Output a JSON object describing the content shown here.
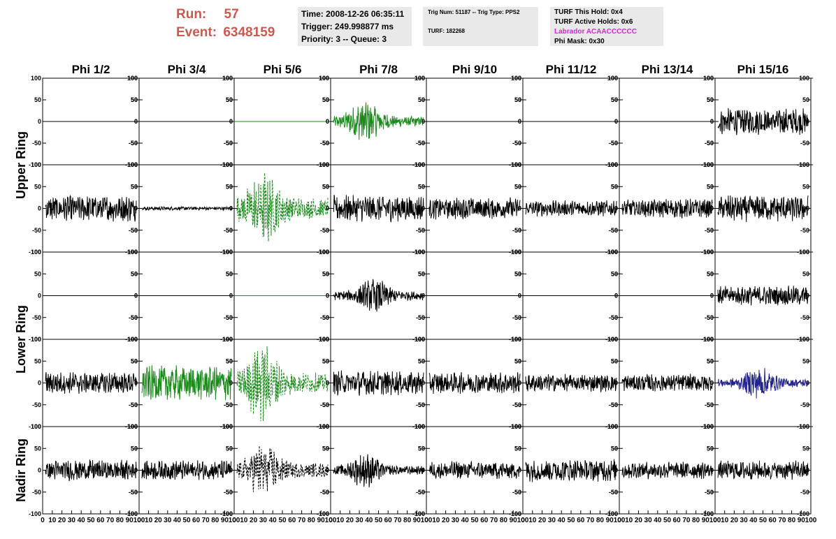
{
  "header": {
    "run_label": "Run:",
    "run_value": "57",
    "event_label": "Event:",
    "event_value": "6348159",
    "time": "Time: 2008-12-26 06:35:11",
    "trigger": "Trigger: 249.998877 ms",
    "priority": "Priority: 3 -- Queue: 3",
    "trig_num": "Trig Num: 51187 -- Trig Type: PPS2",
    "turf": "TURF: 182268",
    "turf_this_hold": "TURF This Hold: 0x4",
    "turf_active_holds": "TURF Active Holds: 0x6",
    "labrador": "Labrador ACAACCCCCC",
    "phi_mask": "Phi Mask: 0x30"
  },
  "chart_data": {
    "type": "line",
    "title": "",
    "columns": [
      "Phi 1/2",
      "Phi 3/4",
      "Phi 5/6",
      "Phi 7/8",
      "Phi 9/10",
      "Phi 11/12",
      "Phi 13/14",
      "Phi 15/16"
    ],
    "rings": [
      "Upper Ring",
      "Lower Ring",
      "Nadir Ring"
    ],
    "ylim": [
      -100,
      100
    ],
    "xlim": [
      0,
      100
    ],
    "y_ticks": [
      "100",
      "50",
      "0",
      "-50",
      "-100"
    ],
    "x_ticks": [
      "0",
      "10",
      "20",
      "30",
      "40",
      "50",
      "60",
      "70",
      "80",
      "90",
      "100"
    ],
    "colors": {
      "default": "#000000",
      "green": "#1a8a1a",
      "blue": "#22228c",
      "magenta": "#e020e0",
      "red": "#c85a50"
    },
    "rows": [
      {
        "ring": 0,
        "traces": [
          {
            "col": 0,
            "amplitude": 0,
            "color": "default",
            "style": "solid"
          },
          {
            "col": 1,
            "amplitude": 0,
            "color": "default",
            "style": "solid"
          },
          {
            "col": 2,
            "amplitude": 0,
            "color": "green",
            "style": "solid"
          },
          {
            "col": 3,
            "amplitude": 50,
            "color": "green",
            "style": "solid",
            "envelope": "burst",
            "peak": 0.35
          },
          {
            "col": 4,
            "amplitude": 0,
            "color": "default",
            "style": "solid"
          },
          {
            "col": 5,
            "amplitude": 0,
            "color": "default",
            "style": "solid"
          },
          {
            "col": 6,
            "amplitude": 0,
            "color": "default",
            "style": "solid"
          },
          {
            "col": 7,
            "amplitude": 30,
            "color": "default",
            "style": "solid"
          }
        ]
      },
      {
        "ring": 0,
        "traces": [
          {
            "col": 0,
            "amplitude": 30,
            "color": "default",
            "style": "solid"
          },
          {
            "col": 1,
            "amplitude": 4,
            "color": "default",
            "style": "solid"
          },
          {
            "col": 2,
            "amplitude": 95,
            "color": "green",
            "style": "dashed",
            "envelope": "burst",
            "peak": 0.3
          },
          {
            "col": 3,
            "amplitude": 30,
            "color": "default",
            "style": "solid"
          },
          {
            "col": 4,
            "amplitude": 25,
            "color": "default",
            "style": "solid"
          },
          {
            "col": 5,
            "amplitude": 18,
            "color": "default",
            "style": "solid"
          },
          {
            "col": 6,
            "amplitude": 22,
            "color": "default",
            "style": "solid"
          },
          {
            "col": 7,
            "amplitude": 30,
            "color": "default",
            "style": "solid"
          }
        ]
      },
      {
        "ring": 1,
        "traces": [
          {
            "col": 0,
            "amplitude": 0,
            "color": "default",
            "style": "solid"
          },
          {
            "col": 1,
            "amplitude": 0,
            "color": "default",
            "style": "solid"
          },
          {
            "col": 2,
            "amplitude": 0,
            "color": "green",
            "style": "solid"
          },
          {
            "col": 3,
            "amplitude": 40,
            "color": "default",
            "style": "solid",
            "envelope": "burst",
            "peak": 0.45
          },
          {
            "col": 4,
            "amplitude": 0,
            "color": "default",
            "style": "solid"
          },
          {
            "col": 5,
            "amplitude": 0,
            "color": "default",
            "style": "solid"
          },
          {
            "col": 6,
            "amplitude": 0,
            "color": "default",
            "style": "solid"
          },
          {
            "col": 7,
            "amplitude": 22,
            "color": "default",
            "style": "solid"
          }
        ]
      },
      {
        "ring": 1,
        "traces": [
          {
            "col": 0,
            "amplitude": 25,
            "color": "default",
            "style": "solid"
          },
          {
            "col": 1,
            "amplitude": 40,
            "color": "green",
            "style": "solid"
          },
          {
            "col": 2,
            "amplitude": 90,
            "color": "green",
            "style": "dashed",
            "envelope": "burst",
            "peak": 0.28
          },
          {
            "col": 3,
            "amplitude": 28,
            "color": "default",
            "style": "solid"
          },
          {
            "col": 4,
            "amplitude": 24,
            "color": "default",
            "style": "solid"
          },
          {
            "col": 5,
            "amplitude": 20,
            "color": "default",
            "style": "solid"
          },
          {
            "col": 6,
            "amplitude": 20,
            "color": "default",
            "style": "solid"
          },
          {
            "col": 7,
            "amplitude": 38,
            "color": "blue",
            "style": "solid",
            "envelope": "burst",
            "peak": 0.45
          }
        ]
      },
      {
        "ring": 2,
        "traces": [
          {
            "col": 0,
            "amplitude": 24,
            "color": "default",
            "style": "solid"
          },
          {
            "col": 1,
            "amplitude": 22,
            "color": "default",
            "style": "solid"
          },
          {
            "col": 2,
            "amplitude": 65,
            "color": "default",
            "style": "dashed",
            "envelope": "burst",
            "peak": 0.3
          },
          {
            "col": 3,
            "amplitude": 40,
            "color": "default",
            "style": "solid",
            "envelope": "burst",
            "peak": 0.35
          },
          {
            "col": 4,
            "amplitude": 20,
            "color": "default",
            "style": "solid"
          },
          {
            "col": 5,
            "amplitude": 26,
            "color": "default",
            "style": "solid"
          },
          {
            "col": 6,
            "amplitude": 20,
            "color": "default",
            "style": "solid"
          },
          {
            "col": 7,
            "amplitude": 22,
            "color": "default",
            "style": "solid"
          }
        ]
      }
    ]
  }
}
